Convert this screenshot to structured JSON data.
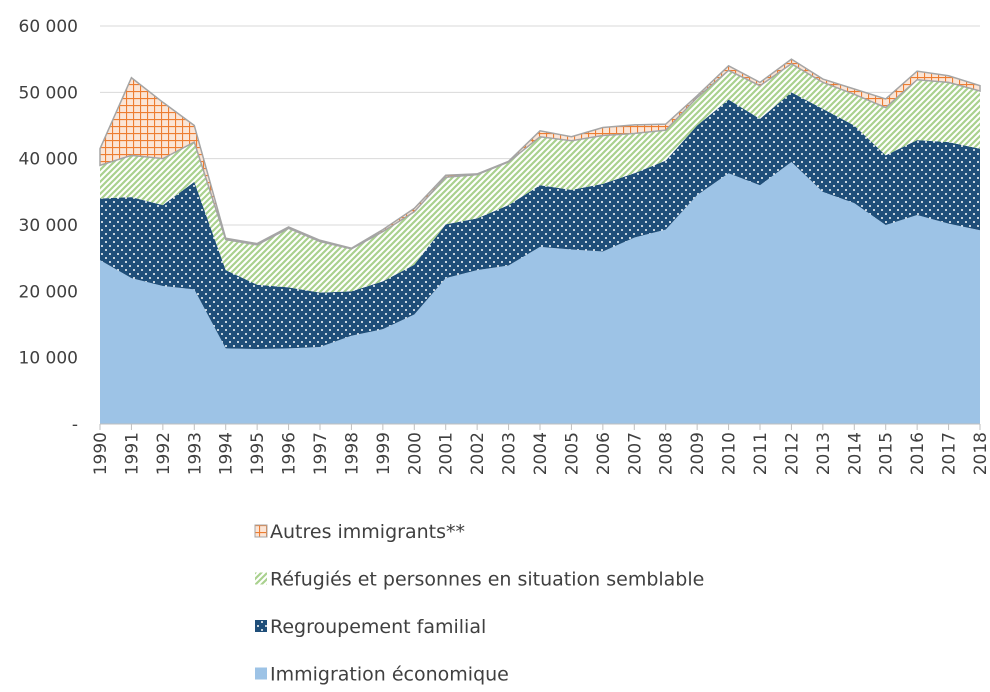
{
  "chart_data": {
    "type": "stacked_area",
    "x": [
      1990,
      1991,
      1992,
      1993,
      1994,
      1995,
      1996,
      1997,
      1998,
      1999,
      2000,
      2001,
      2002,
      2003,
      2004,
      2005,
      2006,
      2007,
      2008,
      2009,
      2010,
      2011,
      2012,
      2013,
      2014,
      2015,
      2016,
      2017,
      2018
    ],
    "xlim": [
      1990,
      2018
    ],
    "xticks": [
      1990,
      1991,
      1992,
      1993,
      1994,
      1995,
      1996,
      1997,
      1998,
      1999,
      2000,
      2001,
      2002,
      2003,
      2004,
      2005,
      2006,
      2007,
      2008,
      2009,
      2010,
      2011,
      2012,
      2013,
      2014,
      2015,
      2016,
      2017,
      2018
    ],
    "ylim": [
      0,
      60000
    ],
    "yticks": [
      {
        "value": 0,
        "label": "-"
      },
      {
        "value": 10000,
        "label": "10 000"
      },
      {
        "value": 20000,
        "label": "20 000"
      },
      {
        "value": 30000,
        "label": "30 000"
      },
      {
        "value": 40000,
        "label": "40 000"
      },
      {
        "value": 50000,
        "label": "50 000"
      },
      {
        "value": 60000,
        "label": "60 000"
      }
    ],
    "grid": true,
    "legend": "bottom",
    "series": [
      {
        "name": "Immigration économique",
        "color": "#9dc3e6",
        "values": [
          24700,
          22000,
          20800,
          20300,
          11400,
          11300,
          11400,
          11600,
          13300,
          14300,
          16500,
          22000,
          23200,
          23900,
          26700,
          26300,
          26000,
          28100,
          29300,
          34500,
          37800,
          36000,
          39500,
          35000,
          33300,
          30000,
          31500,
          30200,
          29200
        ]
      },
      {
        "name": "Regroupement familial",
        "color": "#1f4e79",
        "values": [
          9300,
          12200,
          12200,
          16200,
          11800,
          9700,
          9200,
          8200,
          6700,
          7200,
          7500,
          8100,
          7800,
          9100,
          9300,
          9000,
          10200,
          9700,
          10400,
          10500,
          11100,
          10000,
          10500,
          12500,
          11700,
          10500,
          11300,
          12300,
          12300
        ]
      },
      {
        "name": "Réfugiés et personnes en situation semblable",
        "color": "#a9d18e",
        "values": [
          5000,
          6300,
          7000,
          6000,
          4600,
          6000,
          8900,
          7700,
          6400,
          7500,
          8000,
          7100,
          6600,
          6500,
          7300,
          7400,
          7300,
          6000,
          4600,
          4200,
          4400,
          5000,
          4300,
          4000,
          4700,
          7200,
          9100,
          9000,
          8700
        ]
      },
      {
        "name": "Autres immigrants**",
        "color": "#ed7d31",
        "values": [
          2500,
          11700,
          8500,
          2500,
          200,
          200,
          200,
          200,
          100,
          300,
          500,
          300,
          100,
          100,
          900,
          600,
          1200,
          1300,
          900,
          300,
          700,
          500,
          700,
          500,
          800,
          1300,
          1300,
          1000,
          800
        ]
      }
    ]
  }
}
